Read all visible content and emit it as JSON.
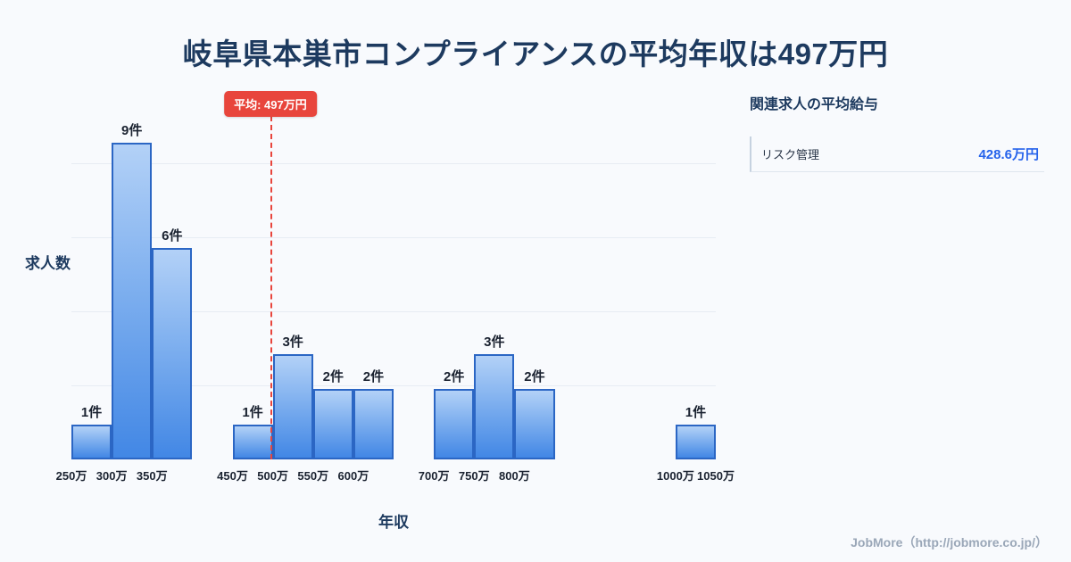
{
  "title": "岐阜県本巣市コンプライアンスの平均年収は497万円",
  "chart_data": {
    "type": "bar",
    "title": "岐阜県本巣市コンプライアンスの平均年収は497万円",
    "xlabel": "年収",
    "ylabel": "求人数",
    "count_unit": "件",
    "x_axis_unit": "万円",
    "x_range": [
      250,
      1050
    ],
    "bin_width": 50,
    "ylim": [
      0,
      9.5
    ],
    "grid": "horizontal",
    "bars": [
      {
        "x_start": 250,
        "count": 1
      },
      {
        "x_start": 300,
        "count": 9
      },
      {
        "x_start": 350,
        "count": 6
      },
      {
        "x_start": 450,
        "count": 1
      },
      {
        "x_start": 500,
        "count": 3
      },
      {
        "x_start": 550,
        "count": 2
      },
      {
        "x_start": 600,
        "count": 2
      },
      {
        "x_start": 700,
        "count": 2
      },
      {
        "x_start": 750,
        "count": 3
      },
      {
        "x_start": 800,
        "count": 2
      },
      {
        "x_start": 1000,
        "count": 1
      }
    ],
    "x_ticks": [
      {
        "value": 250,
        "label": "250万"
      },
      {
        "value": 300,
        "label": "300万"
      },
      {
        "value": 350,
        "label": "350万"
      },
      {
        "value": 450,
        "label": "450万"
      },
      {
        "value": 500,
        "label": "500万"
      },
      {
        "value": 550,
        "label": "550万"
      },
      {
        "value": 600,
        "label": "600万"
      },
      {
        "value": 700,
        "label": "700万"
      },
      {
        "value": 750,
        "label": "750万"
      },
      {
        "value": 800,
        "label": "800万"
      },
      {
        "value": 1000,
        "label": "1000万"
      },
      {
        "value": 1050,
        "label": "1050万"
      }
    ],
    "average": {
      "value": 497,
      "label": "平均: 497万円"
    }
  },
  "side_panel": {
    "heading": "関連求人の平均給与",
    "items": [
      {
        "label": "リスク管理",
        "value": "428.6万円"
      }
    ]
  },
  "footer": {
    "credit": "JobMore（http://jobmore.co.jp/）"
  },
  "colors": {
    "background": "#f8fafd",
    "title_text": "#1d3a5f",
    "bar_top": "#b3d1f7",
    "bar_bottom": "#4287e5",
    "bar_border": "#2b66c4",
    "average_red": "#e8453c",
    "value_blue": "#2563eb",
    "credit_gray": "#9aa7b8"
  }
}
